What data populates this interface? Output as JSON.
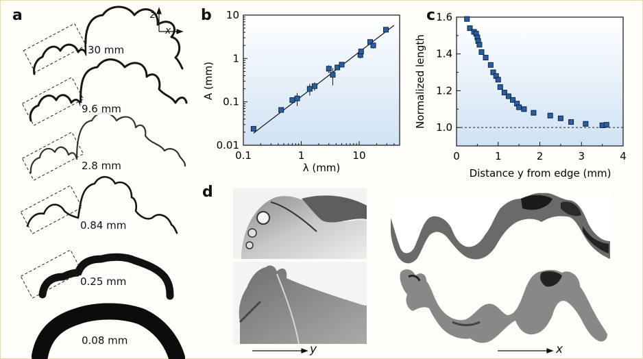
{
  "panels": {
    "a": "a",
    "b": "b",
    "c": "c",
    "d": "d"
  },
  "panel_a": {
    "scales": [
      "30 mm",
      "9.6 mm",
      "2.8 mm",
      "0.84 mm",
      "0.25 mm",
      "0.08 mm"
    ],
    "axis_z": "z",
    "axis_x": "x"
  },
  "panel_d": {
    "arrow_y": "y",
    "arrow_x": "x"
  },
  "colors": {
    "marker": "#2a5fa0",
    "marker_edge": "#0a2448",
    "plot_bg_top": "#ffffff",
    "plot_bg_bottom": "#cfe2f3"
  },
  "chart_data": [
    {
      "type": "scatter",
      "xlabel": "λ (mm)",
      "ylabel": "A (mm)",
      "xscale": "log",
      "yscale": "log",
      "xlim": [
        0.1,
        50
      ],
      "ylim": [
        0.01,
        10
      ],
      "xticks": [
        "0.1",
        "1",
        "10"
      ],
      "yticks": [
        "0.01",
        "0.1",
        "1",
        "10"
      ],
      "points": [
        {
          "x": 0.15,
          "y": 0.024,
          "err": 0.003
        },
        {
          "x": 0.45,
          "y": 0.065,
          "err": 0.005
        },
        {
          "x": 0.7,
          "y": 0.11,
          "err": 0.012
        },
        {
          "x": 0.85,
          "y": 0.12,
          "err": 0.04
        },
        {
          "x": 1.4,
          "y": 0.2,
          "err": 0.06
        },
        {
          "x": 1.7,
          "y": 0.23,
          "err": 0.05
        },
        {
          "x": 3.0,
          "y": 0.58,
          "err": 0.12
        },
        {
          "x": 3.5,
          "y": 0.42,
          "err": 0.18
        },
        {
          "x": 4.2,
          "y": 0.62,
          "err": 0.08
        },
        {
          "x": 5.0,
          "y": 0.72,
          "err": 0.1
        },
        {
          "x": 10.5,
          "y": 1.2,
          "err": 0.2
        },
        {
          "x": 10.8,
          "y": 1.45,
          "err": 0.15
        },
        {
          "x": 15.5,
          "y": 2.4,
          "err": 0.3
        },
        {
          "x": 17.5,
          "y": 2.0,
          "err": 0.3
        },
        {
          "x": 29,
          "y": 4.6,
          "err": 0.4
        }
      ],
      "fit_line": [
        [
          0.15,
          0.019
        ],
        [
          40,
          5.8
        ]
      ]
    },
    {
      "type": "scatter",
      "xlabel": "Distance y from edge (mm)",
      "ylabel": "Normalized length",
      "xlim": [
        0,
        4
      ],
      "ylim": [
        0.9,
        1.6
      ],
      "xticks": [
        "0",
        "1",
        "2",
        "3",
        "4"
      ],
      "yticks": [
        "1.0",
        "1.2",
        "1.4",
        "1.6"
      ],
      "reference_line": 1.0,
      "points": [
        [
          0.25,
          1.59
        ],
        [
          0.32,
          1.54
        ],
        [
          0.42,
          1.52
        ],
        [
          0.47,
          1.51
        ],
        [
          0.5,
          1.49
        ],
        [
          0.52,
          1.47
        ],
        [
          0.55,
          1.45
        ],
        [
          0.6,
          1.41
        ],
        [
          0.7,
          1.38
        ],
        [
          0.82,
          1.34
        ],
        [
          0.88,
          1.3
        ],
        [
          0.95,
          1.28
        ],
        [
          1.0,
          1.26
        ],
        [
          1.05,
          1.22
        ],
        [
          1.15,
          1.19
        ],
        [
          1.25,
          1.17
        ],
        [
          1.35,
          1.15
        ],
        [
          1.45,
          1.13
        ],
        [
          1.5,
          1.11
        ],
        [
          1.62,
          1.1
        ],
        [
          1.85,
          1.08
        ],
        [
          2.25,
          1.065
        ],
        [
          2.5,
          1.05
        ],
        [
          2.75,
          1.03
        ],
        [
          3.1,
          1.02
        ],
        [
          3.5,
          1.012
        ],
        [
          3.6,
          1.015
        ]
      ]
    }
  ]
}
